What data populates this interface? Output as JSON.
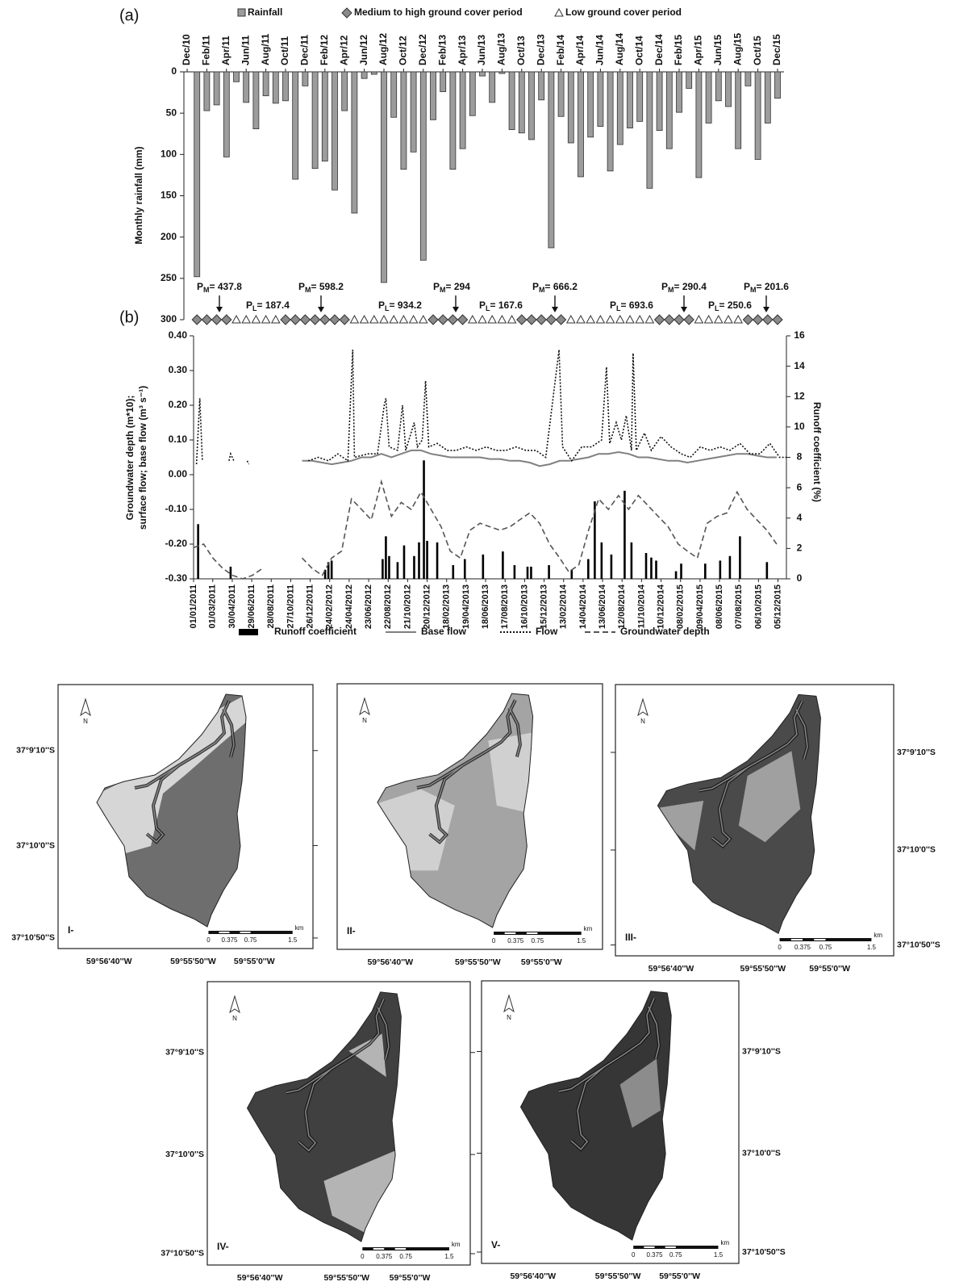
{
  "figure": {
    "panel_a": "(a)",
    "panel_b": "(b)"
  },
  "chart_data": [
    {
      "type": "bar",
      "categories": [
        "Dec/10",
        null,
        "Feb/11",
        null,
        "Apr/11",
        null,
        "Jun/11",
        null,
        "Aug/11",
        null,
        "Oct/11",
        null,
        "Dec/11",
        null,
        "Feb/12",
        null,
        "Apr/12",
        null,
        "Jun/12",
        null,
        "Aug/12",
        null,
        "Oct/12",
        null,
        "Dec/12",
        null,
        "Feb/13",
        null,
        "Apr/13",
        null,
        "Jun/13",
        null,
        "Aug/13",
        null,
        "Oct/13",
        null,
        "Dec/13",
        null,
        "Feb/14",
        null,
        "Apr/14",
        null,
        "Jun/14",
        null,
        "Aug/14",
        null,
        "Oct/14",
        null,
        "Dec/14",
        null,
        "Feb/15",
        null,
        "Apr/15",
        null,
        "Jun/15",
        null,
        "Aug/15",
        null,
        "Oct/15",
        null,
        "Dec/15"
      ],
      "series": [
        {
          "name": "Rainfall",
          "color": "#9c9c9c",
          "values": [
            null,
            248,
            47,
            40,
            103,
            12,
            37,
            69,
            29,
            38,
            35,
            130,
            17,
            117,
            108,
            143,
            47,
            171,
            8,
            3,
            255,
            55,
            118,
            97,
            228,
            58,
            24,
            118,
            93,
            53,
            5,
            37,
            2,
            70,
            74,
            82,
            34,
            213,
            54,
            86,
            127,
            79,
            66,
            120,
            88,
            68,
            60,
            141,
            71,
            93,
            49,
            20,
            128,
            62,
            35,
            42,
            93,
            17,
            106,
            62,
            32
          ]
        }
      ],
      "ylabel": "Monthly rainfall (mm)",
      "ylim": [
        0,
        300
      ],
      "yticks": [
        0,
        50,
        100,
        150,
        200,
        250,
        300
      ],
      "y_inverted": true,
      "periods": [
        {
          "name": "Medium to high ground cover period",
          "marker": "diamond",
          "color": "#8a8a8a",
          "months": [
            1,
            2,
            3,
            4,
            10,
            11,
            12,
            13,
            14,
            15,
            16,
            25,
            26,
            27,
            28,
            34,
            35,
            36,
            37,
            38,
            48,
            49,
            50,
            51,
            57,
            58,
            59,
            60
          ]
        },
        {
          "name": "Low ground cover period",
          "marker": "triangle",
          "color": "#ffffff",
          "months": [
            5,
            6,
            7,
            8,
            9,
            17,
            18,
            19,
            20,
            21,
            22,
            23,
            24,
            29,
            30,
            31,
            32,
            33,
            39,
            40,
            41,
            42,
            43,
            44,
            45,
            46,
            47,
            52,
            53,
            54,
            55,
            56
          ]
        }
      ],
      "annotations": [
        {
          "symbol": "P",
          "subscript": "M",
          "text": "= 437.8"
        },
        {
          "symbol": "P",
          "subscript": "L",
          "text": "= 187.4"
        },
        {
          "symbol": "P",
          "subscript": "M",
          "text": "= 598.2"
        },
        {
          "symbol": "P",
          "subscript": "L",
          "text": "= 934.2"
        },
        {
          "symbol": "P",
          "subscript": "M",
          "text": "= 294"
        },
        {
          "symbol": "P",
          "subscript": "L",
          "text": "= 167.6"
        },
        {
          "symbol": "P",
          "subscript": "M",
          "text": "= 666.2"
        },
        {
          "symbol": "P",
          "subscript": "L",
          "text": "= 693.6"
        },
        {
          "symbol": "P",
          "subscript": "M",
          "text": "= 290.4"
        },
        {
          "symbol": "P",
          "subscript": "L",
          "text": "= 250.6"
        },
        {
          "symbol": "P",
          "subscript": "M",
          "text": "= 201.6"
        }
      ]
    },
    {
      "type": "combo",
      "x": [
        "2011-01-01",
        "2011-02-01",
        "2011-03-01",
        "2011-04-01",
        "2011-05-01",
        "2011-06-01",
        "2011-07-01",
        "2011-08-01",
        "2011-09-01",
        "2011-10-01",
        "2011-11-01",
        "2011-12-01",
        "2012-01-01",
        "2012-02-01",
        "2012-03-01",
        "2012-04-01",
        "2012-05-01",
        "2012-06-01",
        "2012-07-01",
        "2012-08-01",
        "2012-09-01",
        "2012-10-01",
        "2012-11-01",
        "2012-12-01",
        "2013-01-01",
        "2013-02-01",
        "2013-03-01",
        "2013-04-01",
        "2013-05-01",
        "2013-06-01",
        "2013-07-01",
        "2013-08-01",
        "2013-09-01",
        "2013-10-01",
        "2013-11-01",
        "2013-12-01",
        "2014-01-01",
        "2014-02-01",
        "2014-03-01",
        "2014-04-01",
        "2014-05-01",
        "2014-06-01",
        "2014-07-01",
        "2014-08-01",
        "2014-09-01",
        "2014-10-01",
        "2014-11-01",
        "2014-12-01",
        "2015-01-01",
        "2015-02-01",
        "2015-03-01",
        "2015-04-01",
        "2015-05-01",
        "2015-06-01",
        "2015-07-01",
        "2015-08-01",
        "2015-09-01",
        "2015-10-01",
        "2015-11-01",
        "2015-12-01"
      ],
      "xlim": [
        "2011-01-01",
        "2015-12-31"
      ],
      "xticks": [
        {
          "value": "2011-01-01",
          "label": "01/01/2011"
        },
        {
          "value": "2011-03-01",
          "label": "01/03/2011"
        },
        {
          "value": "2011-04-30",
          "label": "30/04/2011"
        },
        {
          "value": "2011-06-29",
          "label": "29/06/2011"
        },
        {
          "value": "2011-08-28",
          "label": "28/08/2011"
        },
        {
          "value": "2011-10-27",
          "label": "27/10/2011"
        },
        {
          "value": "2011-12-26",
          "label": "26/12/2011"
        },
        {
          "value": "2012-02-24",
          "label": "24/02/2012"
        },
        {
          "value": "2012-04-24",
          "label": "24/04/2012"
        },
        {
          "value": "2012-06-23",
          "label": "23/06/2012"
        },
        {
          "value": "2012-08-22",
          "label": "22/08/2012"
        },
        {
          "value": "2012-10-21",
          "label": "21/10/2012"
        },
        {
          "value": "2012-12-20",
          "label": "20/12/2012"
        },
        {
          "value": "2013-02-18",
          "label": "18/02/2013"
        },
        {
          "value": "2013-04-19",
          "label": "19/04/2013"
        },
        {
          "value": "2013-06-18",
          "label": "18/06/2013"
        },
        {
          "value": "2013-08-17",
          "label": "17/08/2013"
        },
        {
          "value": "2013-10-16",
          "label": "16/10/2013"
        },
        {
          "value": "2013-12-15",
          "label": "15/12/2013"
        },
        {
          "value": "2014-02-13",
          "label": "13/02/2014"
        },
        {
          "value": "2014-04-14",
          "label": "14/04/2014"
        },
        {
          "value": "2014-06-13",
          "label": "13/06/2014"
        },
        {
          "value": "2014-08-12",
          "label": "12/08/2014"
        },
        {
          "value": "2014-10-11",
          "label": "11/10/2014"
        },
        {
          "value": "2014-12-10",
          "label": "10/12/2014"
        },
        {
          "value": "2015-02-08",
          "label": "08/02/2015"
        },
        {
          "value": "2015-04-09",
          "label": "09/04/2015"
        },
        {
          "value": "2015-06-08",
          "label": "08/06/2015"
        },
        {
          "value": "2015-08-07",
          "label": "07/08/2015"
        },
        {
          "value": "2015-10-06",
          "label": "06/10/2015"
        },
        {
          "value": "2015-12-05",
          "label": "05/12/2015"
        }
      ],
      "ylabel": [
        "Groundwater depth (m*10);",
        "surface flow; base flow (m³ s⁻¹)"
      ],
      "y2label": "Runoff coefficient (%)",
      "ylim": [
        -0.3,
        0.4
      ],
      "yticks": [
        {
          "value": 0.4,
          "label": "0.40"
        },
        {
          "value": 0.3,
          "label": "0.30"
        },
        {
          "value": 0.2,
          "label": "0.20"
        },
        {
          "value": 0.1,
          "label": "0.10"
        },
        {
          "value": 0,
          "label": "0.00"
        },
        {
          "value": -0.1,
          "label": "-0.10"
        },
        {
          "value": -0.2,
          "label": "-0.20"
        },
        {
          "value": -0.3,
          "label": "-0.30"
        }
      ],
      "y2lim": [
        0,
        16
      ],
      "y2ticks": [
        0,
        2,
        4,
        6,
        8,
        10,
        12,
        14,
        16
      ],
      "series": [
        {
          "name": "Runoff coefficient",
          "type": "bar",
          "axis": "y2",
          "color": "#000000",
          "x": [
            "2011-01-15",
            "2011-04-25",
            "2012-02-10",
            "2012-02-20",
            "2012-03-01",
            "2012-08-05",
            "2012-08-15",
            "2012-08-25",
            "2012-09-20",
            "2012-10-10",
            "2012-11-10",
            "2012-11-25",
            "2012-12-10",
            "2012-12-20",
            "2013-01-20",
            "2013-03-10",
            "2013-04-15",
            "2013-06-10",
            "2013-08-10",
            "2013-09-15",
            "2013-10-25",
            "2013-11-05",
            "2013-12-30",
            "2014-03-10",
            "2014-04-30",
            "2014-05-20",
            "2014-06-10",
            "2014-07-10",
            "2014-08-20",
            "2014-09-10",
            "2014-10-25",
            "2014-11-10",
            "2014-11-25",
            "2015-01-25",
            "2015-02-10",
            "2015-04-25",
            "2015-06-10",
            "2015-07-10",
            "2015-08-10",
            "2015-11-01"
          ],
          "values": [
            3.6,
            0.8,
            0.6,
            1.1,
            1.2,
            1.3,
            2.8,
            1.5,
            1.1,
            2.2,
            1.5,
            2.4,
            7.8,
            2.5,
            2.4,
            0.9,
            1.3,
            1.6,
            1.8,
            0.9,
            0.8,
            0.8,
            0.9,
            0.6,
            1.3,
            5.1,
            2.4,
            1.6,
            5.8,
            2.4,
            1.7,
            1.4,
            1.2,
            0.5,
            1.0,
            1.0,
            1.2,
            1.5,
            2.8,
            1.1
          ]
        },
        {
          "name": "Base flow",
          "type": "line",
          "line_style": "solid",
          "color": "#808080",
          "values": [
            null,
            null,
            null,
            null,
            null,
            null,
            null,
            null,
            null,
            null,
            null,
            0.04,
            0.04,
            0.035,
            0.03,
            0.035,
            0.04,
            0.05,
            0.05,
            0.06,
            0.05,
            0.06,
            0.07,
            0.07,
            0.06,
            0.055,
            0.05,
            0.05,
            0.05,
            0.05,
            0.045,
            0.045,
            0.04,
            0.04,
            0.035,
            0.025,
            0.03,
            0.04,
            0.04,
            0.045,
            0.05,
            0.06,
            0.06,
            0.065,
            0.06,
            0.05,
            0.05,
            0.045,
            0.04,
            0.04,
            0.035,
            0.04,
            0.045,
            0.05,
            0.055,
            0.06,
            0.06,
            0.055,
            0.05,
            0.05
          ]
        },
        {
          "name": "Flow",
          "type": "line",
          "line_style": "dotted",
          "color": "#111111",
          "x": [
            "2011-01-10",
            "2011-01-20",
            "2011-01-28",
            "2011-02-15",
            "2011-04-20",
            "2011-04-25",
            "2011-05-05",
            "2011-05-20",
            "2011-06-15",
            "2011-06-20",
            "2011-07-01",
            "2011-12-20",
            "2012-01-20",
            "2012-02-20",
            "2012-03-20",
            "2012-04-20",
            "2012-05-05",
            "2012-05-10",
            "2012-06-20",
            "2012-07-20",
            "2012-08-10",
            "2012-08-15",
            "2012-08-25",
            "2012-09-20",
            "2012-10-05",
            "2012-10-15",
            "2012-11-10",
            "2012-11-20",
            "2012-12-05",
            "2012-12-15",
            "2012-12-25",
            "2013-01-20",
            "2013-02-20",
            "2013-03-20",
            "2013-04-20",
            "2013-05-20",
            "2013-06-20",
            "2013-07-20",
            "2013-08-20",
            "2013-09-20",
            "2013-10-20",
            "2013-11-20",
            "2013-12-20",
            "2014-01-30",
            "2014-02-10",
            "2014-03-10",
            "2014-04-10",
            "2014-05-10",
            "2014-06-10",
            "2014-06-25",
            "2014-07-05",
            "2014-07-25",
            "2014-08-10",
            "2014-08-25",
            "2014-09-10",
            "2014-09-15",
            "2014-09-25",
            "2014-10-20",
            "2014-11-10",
            "2014-12-10",
            "2015-01-10",
            "2015-02-10",
            "2015-03-10",
            "2015-04-10",
            "2015-05-10",
            "2015-06-10",
            "2015-07-10",
            "2015-08-10",
            "2015-09-10",
            "2015-10-10",
            "2015-11-10",
            "2015-12-10",
            "2015-12-31"
          ],
          "values": [
            0.03,
            0.22,
            0.04,
            null,
            0.04,
            0.06,
            0.04,
            null,
            0.04,
            0.03,
            null,
            0.04,
            0.05,
            0.04,
            0.06,
            0.04,
            0.36,
            0.05,
            0.06,
            0.06,
            0.2,
            0.22,
            0.08,
            0.07,
            0.2,
            0.07,
            0.15,
            0.08,
            0.1,
            0.27,
            0.08,
            0.09,
            0.07,
            0.07,
            0.08,
            0.07,
            0.08,
            0.07,
            0.07,
            0.08,
            0.07,
            0.07,
            0.05,
            0.36,
            0.08,
            0.04,
            0.08,
            0.08,
            0.1,
            0.31,
            0.09,
            0.15,
            0.1,
            0.17,
            0.07,
            0.35,
            0.07,
            0.12,
            0.07,
            0.11,
            0.08,
            0.06,
            0.05,
            0.08,
            0.07,
            0.08,
            0.07,
            0.09,
            0.06,
            0.06,
            0.09,
            0.05,
            0.05
          ]
        },
        {
          "name": "Groundwater depth",
          "type": "line",
          "line_style": "dashed",
          "color": "#555555",
          "values": [
            -0.21,
            -0.2,
            -0.24,
            -0.27,
            -0.29,
            -0.3,
            -0.29,
            -0.27,
            null,
            null,
            null,
            -0.24,
            -0.27,
            -0.29,
            -0.24,
            -0.22,
            -0.07,
            -0.1,
            -0.13,
            -0.02,
            -0.12,
            -0.08,
            -0.1,
            -0.05,
            -0.1,
            -0.15,
            -0.22,
            -0.24,
            -0.16,
            -0.14,
            -0.15,
            -0.16,
            -0.15,
            -0.13,
            -0.11,
            -0.14,
            -0.2,
            -0.24,
            -0.28,
            -0.26,
            -0.16,
            -0.07,
            -0.1,
            -0.06,
            -0.1,
            -0.06,
            -0.09,
            -0.12,
            -0.15,
            -0.2,
            -0.22,
            -0.24,
            -0.14,
            -0.12,
            -0.11,
            -0.05,
            -0.1,
            -0.13,
            -0.16,
            -0.2
          ]
        }
      ]
    }
  ],
  "maps": [
    {
      "label": "I-",
      "lat_labels": [
        "37°9'10''S",
        "37°10'0''S",
        "37°10'50''S"
      ],
      "lon_labels": [
        "59°56'40''W",
        "59°55'50''W",
        "59°55'0''W"
      ],
      "scale_labels": [
        "0",
        "0.375",
        "0.75",
        "1.5"
      ],
      "scale_unit": "km",
      "north": "N"
    },
    {
      "label": "II-",
      "lon_labels": [
        "59°56'40''W",
        "59°55'50''W",
        "59°55'0''W"
      ],
      "scale_labels": [
        "0",
        "0.375",
        "0.75",
        "1.5"
      ],
      "scale_unit": "km",
      "north": "N"
    },
    {
      "label": "III-",
      "lat_labels": [
        "37°9'10''S",
        "37°10'0''S",
        "37°10'50''S"
      ],
      "lon_labels": [
        "59°56'40''W",
        "59°55'50''W",
        "59°55'0''W"
      ],
      "scale_labels": [
        "0",
        "0.375",
        "0.75",
        "1.5"
      ],
      "scale_unit": "km",
      "north": "N"
    },
    {
      "label": "IV-",
      "lat_labels": [
        "37°9'10''S",
        "37°10'0''S",
        "37°10'50''S"
      ],
      "lon_labels": [
        "59°56'40''W",
        "59°55'50''W",
        "59°55'0''W"
      ],
      "scale_labels": [
        "0",
        "0.375",
        "0.75",
        "1.5"
      ],
      "scale_unit": "km",
      "north": "N"
    },
    {
      "label": "V-",
      "lat_labels": [
        "37°9'10''S",
        "37°10'0''S",
        "37°10'50''S"
      ],
      "lon_labels": [
        "59°56'40''W",
        "59°55'50''W",
        "59°55'0''W"
      ],
      "scale_labels": [
        "0",
        "0.375",
        "0.75",
        "1.5"
      ],
      "scale_unit": "km",
      "north": "N"
    }
  ]
}
